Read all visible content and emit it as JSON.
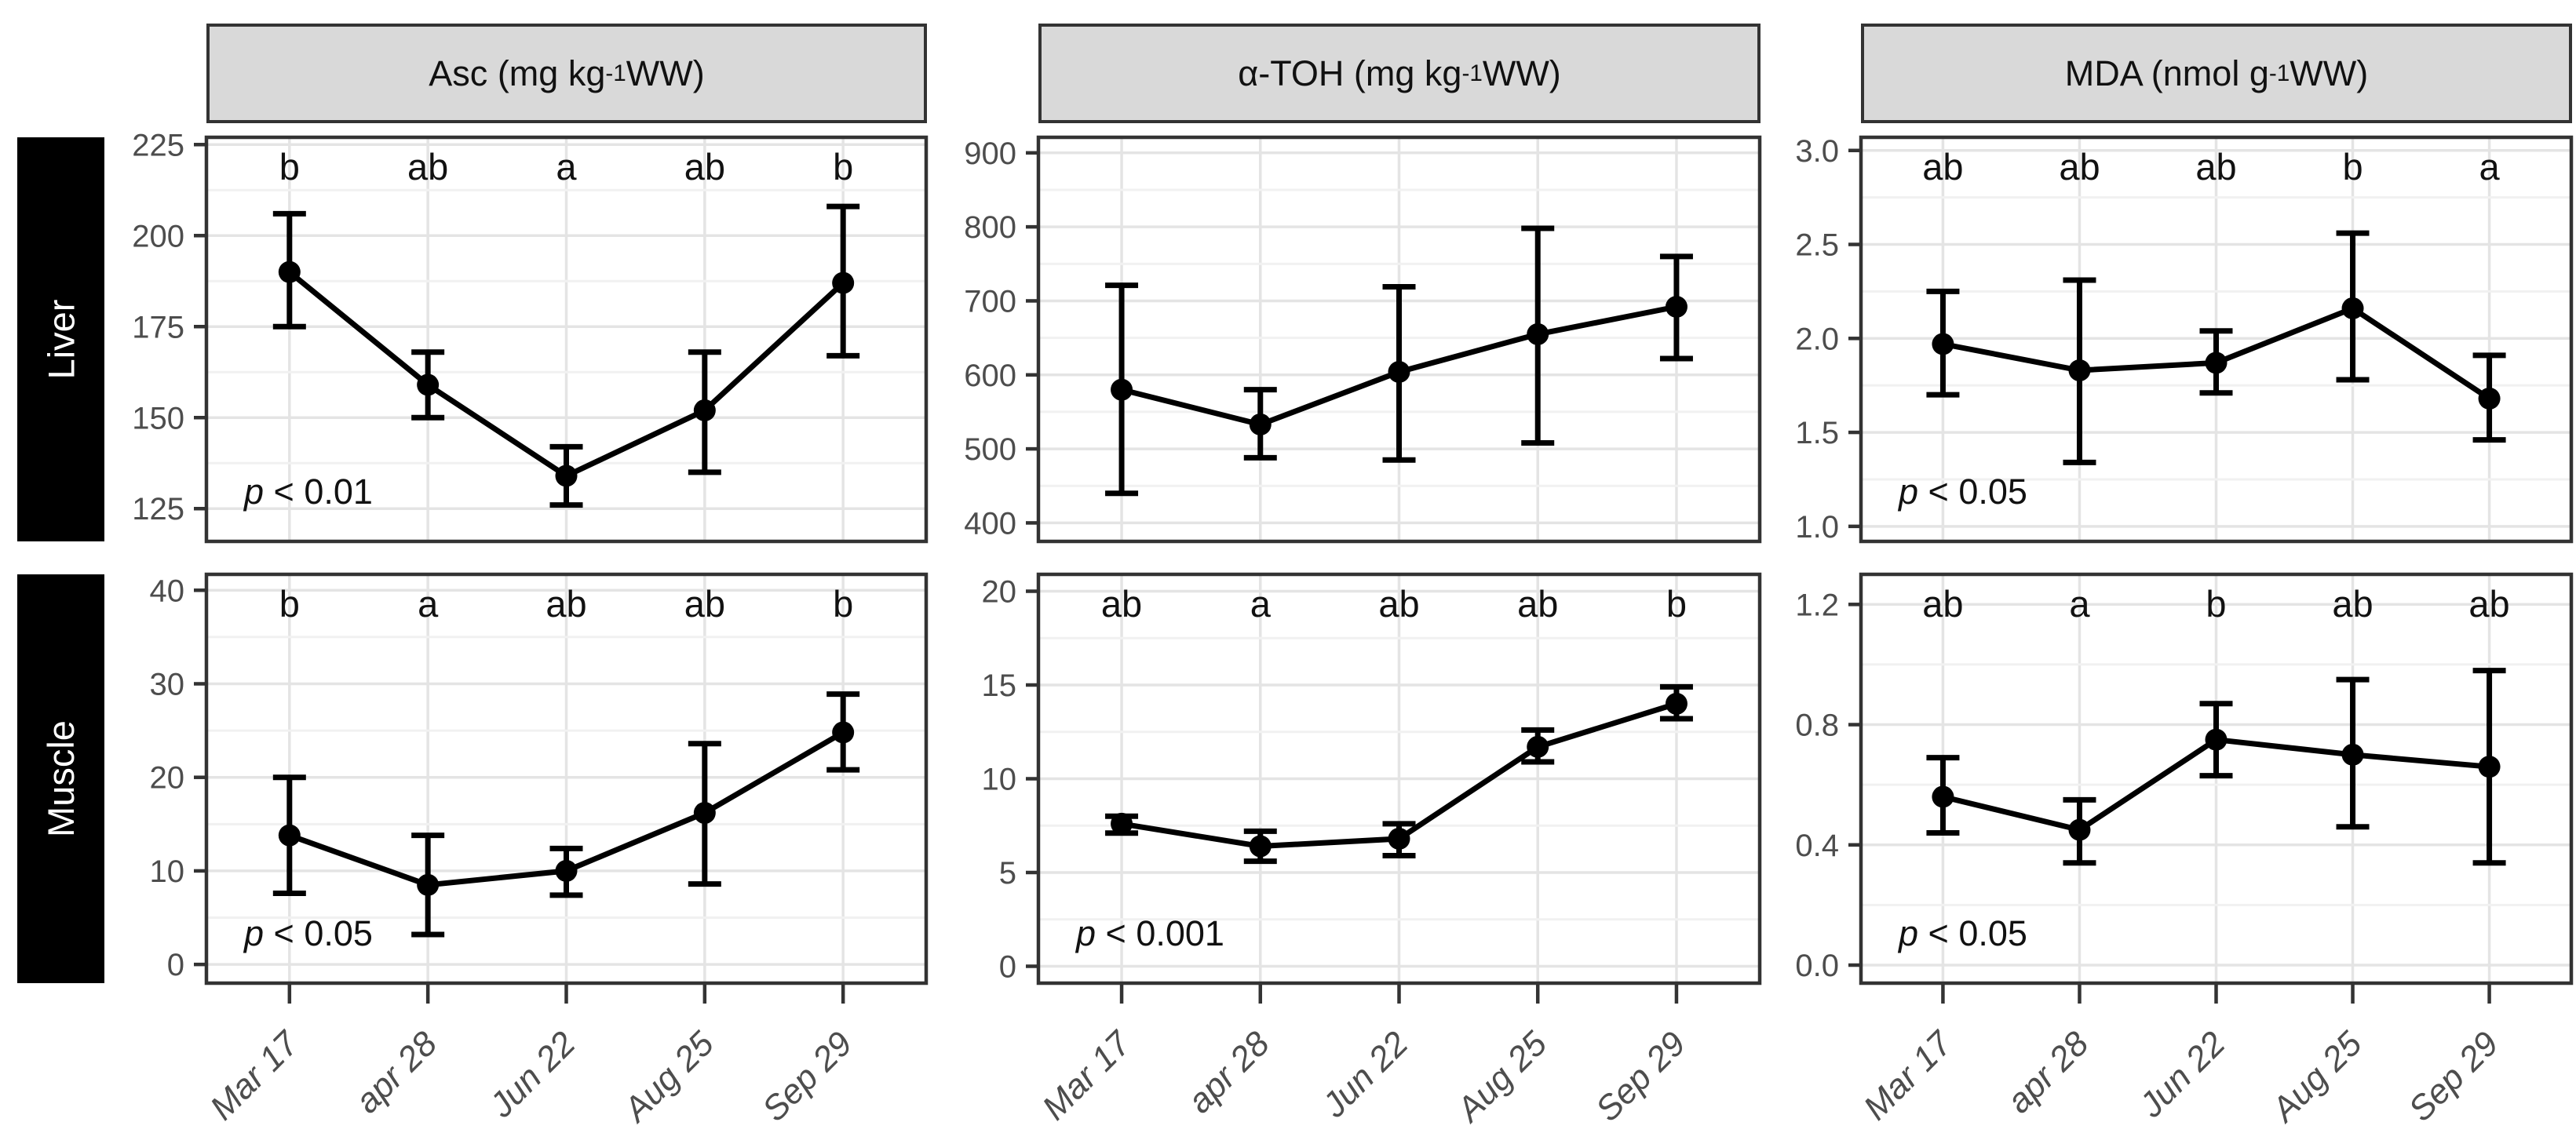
{
  "chart_data": {
    "type": "line",
    "description": "Faceted point-and-line chart with error bars, significance letters and p-value annotations",
    "x_categories": [
      "Mar 17",
      "apr 28",
      "Jun 22",
      "Aug 25",
      "Sep 29"
    ],
    "facet_rows": [
      "Liver",
      "Muscle"
    ],
    "facet_cols": [
      {
        "pre": "Asc (mg kg",
        "sup": "-1",
        "post": " WW)"
      },
      {
        "pre": "α-TOH (mg kg ",
        "sup": "-1",
        "post": " WW)"
      },
      {
        "pre": "MDA (nmol g",
        "sup": "-1",
        "post": " WW)"
      }
    ],
    "legend": "none",
    "grid": "major and minor horizontal, major vertical at categories",
    "panels": [
      {
        "name": "liver-asc",
        "row": 0,
        "col": 0,
        "ylim": [
          116,
          227
        ],
        "yticks": [
          125,
          150,
          175,
          200,
          225
        ],
        "ytick_labels": [
          "125",
          "150",
          "175",
          "200",
          "225"
        ],
        "means": [
          190,
          159,
          134,
          152,
          187
        ],
        "lower": [
          175,
          150,
          126,
          135,
          167
        ],
        "upper": [
          206,
          168,
          142,
          168,
          208
        ],
        "letters": [
          "b",
          "ab",
          "a",
          "ab",
          "b"
        ],
        "p_text": "p < 0.01"
      },
      {
        "name": "liver-atoh",
        "row": 0,
        "col": 1,
        "ylim": [
          375,
          921
        ],
        "yticks": [
          400,
          500,
          600,
          700,
          800,
          900
        ],
        "ytick_labels": [
          "400",
          "500",
          "600",
          "700",
          "800",
          "900"
        ],
        "means": [
          580,
          533,
          604,
          655,
          692
        ],
        "lower": [
          440,
          488,
          485,
          508,
          622
        ],
        "upper": [
          721,
          580,
          719,
          798,
          760
        ],
        "letters": null,
        "p_text": null
      },
      {
        "name": "liver-mda",
        "row": 0,
        "col": 2,
        "ylim": [
          0.92,
          3.07
        ],
        "yticks": [
          1.0,
          1.5,
          2.0,
          2.5,
          3.0
        ],
        "ytick_labels": [
          "1.0",
          "1.5",
          "2.0",
          "2.5",
          "3.0"
        ],
        "means": [
          1.97,
          1.83,
          1.87,
          2.16,
          1.68
        ],
        "lower": [
          1.7,
          1.34,
          1.71,
          1.78,
          1.46
        ],
        "upper": [
          2.25,
          2.31,
          2.04,
          2.56,
          1.91
        ],
        "letters": [
          "ab",
          "ab",
          "ab",
          "b",
          "a"
        ],
        "p_text": "p < 0.05"
      },
      {
        "name": "muscle-asc",
        "row": 1,
        "col": 0,
        "ylim": [
          -2,
          41.7
        ],
        "yticks": [
          0,
          10,
          20,
          30,
          40
        ],
        "ytick_labels": [
          "0",
          "10",
          "20",
          "30",
          "40"
        ],
        "means": [
          13.8,
          8.5,
          10.0,
          16.2,
          24.8
        ],
        "lower": [
          7.6,
          3.2,
          7.4,
          8.6,
          20.8
        ],
        "upper": [
          20.0,
          13.8,
          12.4,
          23.6,
          28.9
        ],
        "letters": [
          "b",
          "a",
          "ab",
          "ab",
          "b"
        ],
        "p_text": "p < 0.05"
      },
      {
        "name": "muscle-atoh",
        "row": 1,
        "col": 1,
        "ylim": [
          -0.9,
          20.9
        ],
        "yticks": [
          0,
          5,
          10,
          15,
          20
        ],
        "ytick_labels": [
          "0",
          "5",
          "10",
          "15",
          "20"
        ],
        "means": [
          7.6,
          6.4,
          6.8,
          11.7,
          14.0
        ],
        "lower": [
          7.1,
          5.6,
          5.9,
          10.9,
          13.2
        ],
        "upper": [
          8.0,
          7.2,
          7.6,
          12.6,
          14.9
        ],
        "letters": [
          "ab",
          "a",
          "ab",
          "ab",
          "b"
        ],
        "p_text": "p < 0.001"
      },
      {
        "name": "muscle-mda",
        "row": 1,
        "col": 2,
        "ylim": [
          -0.06,
          1.3
        ],
        "yticks": [
          0.0,
          0.4,
          0.8,
          1.2
        ],
        "ytick_labels": [
          "0.0",
          "0.4",
          "0.8",
          "1.2"
        ],
        "means": [
          0.56,
          0.45,
          0.75,
          0.7,
          0.66
        ],
        "lower": [
          0.44,
          0.34,
          0.63,
          0.46,
          0.34
        ],
        "upper": [
          0.69,
          0.55,
          0.87,
          0.95,
          0.98
        ],
        "letters": [
          "ab",
          "a",
          "b",
          "ab",
          "ab"
        ],
        "p_text": "p < 0.05"
      }
    ],
    "colors": {
      "line": "#000000",
      "point": "#000000",
      "grid_major": "#e4e4e4",
      "grid_minor": "#f1f1f1",
      "panel_border": "#333333",
      "strip_bg": "#d9d9d9",
      "row_strip_bg": "#000000",
      "row_strip_text": "#ffffff",
      "tick_text": "#4d4d4d",
      "annotation_text": "#111111"
    }
  }
}
